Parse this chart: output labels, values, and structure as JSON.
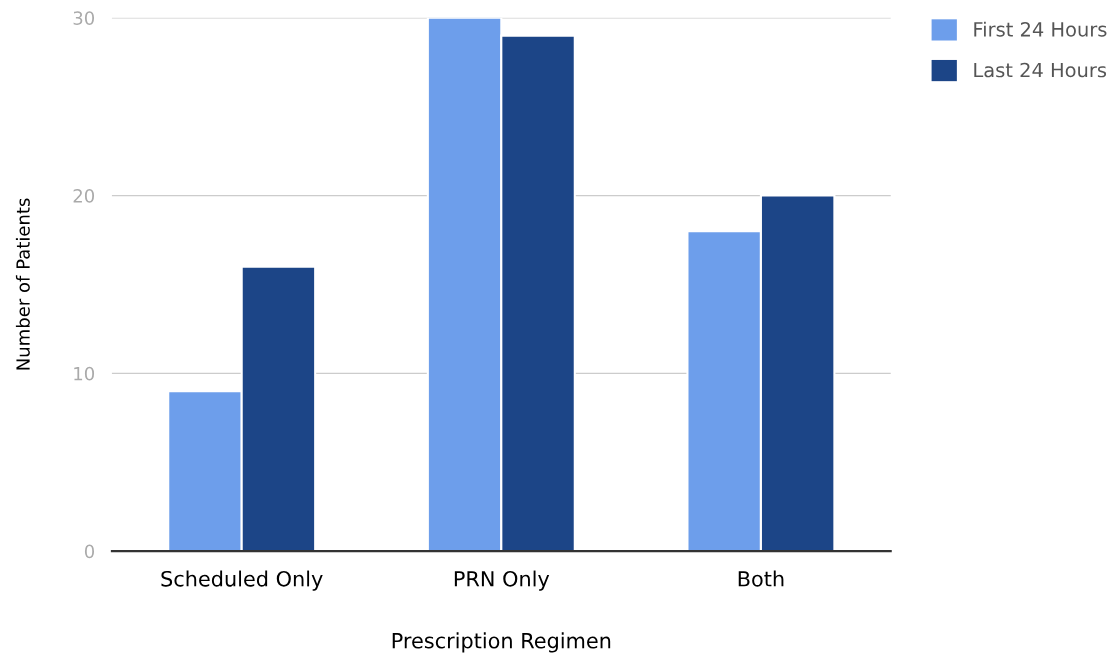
{
  "chart_data": {
    "type": "bar",
    "xlabel": "Prescription Regimen",
    "ylabel": "Number of Patients",
    "categories": [
      "Scheduled Only",
      "PRN Only",
      "Both"
    ],
    "series": [
      {
        "name": "First 24 Hours",
        "color": "#6d9eeb",
        "values": [
          9,
          30,
          18
        ]
      },
      {
        "name": "Last 24 Hours",
        "color": "#1c4587",
        "values": [
          16,
          29,
          20
        ]
      }
    ],
    "ylim": [
      0,
      30
    ],
    "yticks": [
      0,
      10,
      20,
      30
    ],
    "grid": "y",
    "legend": "top right"
  }
}
